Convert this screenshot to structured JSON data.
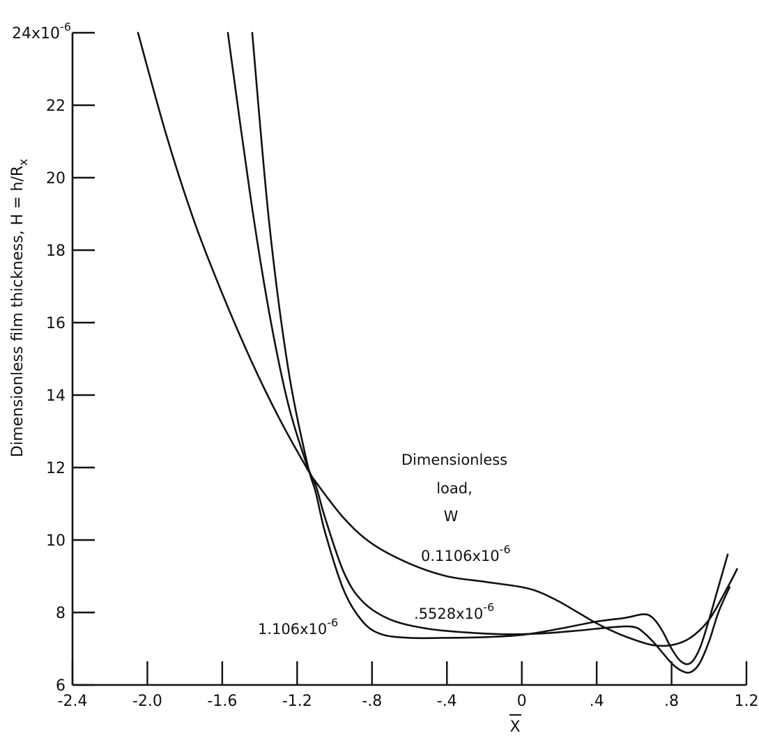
{
  "chart_data": {
    "type": "line",
    "xlabel": "X",
    "ylabel": "Dimensionless film thickness,  H = h/R",
    "ylabel_subscript": "x",
    "xlim": [
      -2.4,
      1.2
    ],
    "ylim": [
      6,
      24
    ],
    "grid": false,
    "x_ticks": [
      -2.4,
      -2.0,
      -1.6,
      -1.2,
      -0.8,
      -0.4,
      0,
      0.4,
      0.8,
      1.2
    ],
    "x_tick_labels": [
      "-2.4",
      "-2.0",
      "-1.6",
      "-1.2",
      "-.8",
      "-.4",
      "0",
      ".4",
      ".8",
      "1.2"
    ],
    "y_ticks": [
      6,
      8,
      10,
      12,
      14,
      16,
      18,
      20,
      22,
      24
    ],
    "y_tick_labels": [
      "6",
      "8",
      "10",
      "12",
      "14",
      "16",
      "18",
      "20",
      "22",
      "24x10"
    ],
    "y_top_exponent": "-6",
    "legend_title": [
      "Dimensionless",
      "load,",
      "W"
    ],
    "series": [
      {
        "name": "0.1106x10-6",
        "label_base": "0.1106x10",
        "label_exp": "-6",
        "x": [
          -2.05,
          -1.9,
          -1.75,
          -1.6,
          -1.45,
          -1.3,
          -1.15,
          -1.1,
          -0.95,
          -0.8,
          -0.6,
          -0.4,
          -0.2,
          0,
          0.1,
          0.2,
          0.3,
          0.4,
          0.5,
          0.6,
          0.7,
          0.8,
          0.9,
          1.0,
          1.1,
          1.15
        ],
        "y": [
          24,
          21.2,
          18.8,
          16.8,
          15.0,
          13.4,
          12.0,
          11.6,
          10.6,
          9.9,
          9.35,
          9.0,
          8.85,
          8.7,
          8.55,
          8.3,
          8.0,
          7.7,
          7.45,
          7.25,
          7.1,
          7.1,
          7.3,
          7.8,
          8.7,
          9.2
        ]
      },
      {
        "name": ".5528x10-6",
        "label_base": ".5528x10",
        "label_exp": "-6",
        "x": [
          -1.57,
          -1.45,
          -1.35,
          -1.25,
          -1.15,
          -1.1,
          -1.05,
          -0.95,
          -0.85,
          -0.7,
          -0.5,
          -0.3,
          -0.1,
          0.1,
          0.3,
          0.5,
          0.6,
          0.65,
          0.7,
          0.75,
          0.8,
          0.85,
          0.9,
          0.95,
          1.0,
          1.05,
          1.11
        ],
        "y": [
          24,
          19.5,
          16.3,
          13.8,
          12.1,
          11.5,
          10.6,
          9.1,
          8.3,
          7.8,
          7.55,
          7.45,
          7.4,
          7.42,
          7.5,
          7.6,
          7.6,
          7.45,
          7.2,
          6.9,
          6.6,
          6.4,
          6.35,
          6.6,
          7.2,
          8.0,
          8.7
        ]
      },
      {
        "name": "1.106x10-6",
        "label_base": "1.106x10",
        "label_exp": "-6",
        "x": [
          -1.44,
          -1.35,
          -1.25,
          -1.15,
          -1.1,
          -1.05,
          -0.95,
          -0.85,
          -0.75,
          -0.6,
          -0.4,
          -0.2,
          0,
          0.2,
          0.4,
          0.55,
          0.65,
          0.7,
          0.75,
          0.8,
          0.85,
          0.9,
          0.95,
          1.0,
          1.05,
          1.1
        ],
        "y": [
          24,
          18.8,
          14.8,
          12.2,
          11.3,
          10.2,
          8.6,
          7.75,
          7.4,
          7.3,
          7.3,
          7.32,
          7.38,
          7.55,
          7.75,
          7.85,
          7.95,
          7.85,
          7.5,
          7.0,
          6.65,
          6.6,
          7.0,
          7.8,
          8.7,
          9.6
        ]
      }
    ]
  }
}
